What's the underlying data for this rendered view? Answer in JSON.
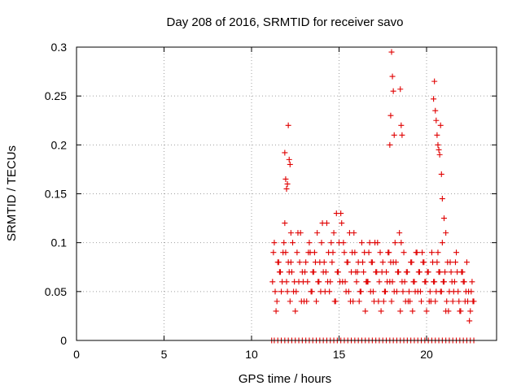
{
  "chart_data": {
    "type": "scatter",
    "title": "Day 208 of 2016, SRMTID for receiver savo",
    "xlabel": "GPS time / hours",
    "ylabel": "SRMTID / TECUs",
    "xlim": [
      0,
      24
    ],
    "ylim": [
      0,
      0.3
    ],
    "xticks": [
      0,
      5,
      10,
      15,
      20
    ],
    "xtick_labels": [
      "0",
      "5",
      "10",
      "15",
      "20"
    ],
    "yticks": [
      0,
      0.05,
      0.1,
      0.15,
      0.2,
      0.25,
      0.3
    ],
    "ytick_labels": [
      "0",
      "0.05",
      "0.1",
      "0.15",
      "0.2",
      "0.25",
      "0.3"
    ],
    "grid": true,
    "marker": "plus",
    "color": "#e00000",
    "series": [
      {
        "name": "SRMTID",
        "x": [
          11.2,
          11.3,
          11.4,
          11.5,
          11.6,
          11.7,
          11.8,
          11.9,
          12.0,
          12.1,
          12.2,
          12.3,
          12.4,
          12.5,
          12.6,
          12.7,
          12.8,
          12.9,
          13.0,
          13.1,
          13.2,
          13.3,
          13.4,
          13.5,
          13.6,
          13.7,
          13.8,
          13.9,
          14.0,
          14.1,
          14.2,
          14.3,
          14.4,
          14.5,
          14.6,
          14.7,
          14.8,
          14.9,
          15.0,
          15.1,
          15.2,
          15.3,
          15.4,
          15.5,
          15.6,
          15.7,
          15.8,
          15.9,
          16.0,
          16.1,
          16.2,
          16.3,
          16.4,
          16.5,
          16.6,
          16.7,
          16.8,
          16.9,
          17.0,
          17.1,
          17.2,
          17.3,
          17.4,
          17.5,
          17.6,
          17.7,
          17.8,
          17.9,
          18.0,
          18.1,
          18.2,
          18.3,
          18.4,
          18.5,
          18.6,
          18.7,
          18.8,
          18.9,
          19.0,
          19.1,
          19.2,
          19.3,
          19.4,
          19.5,
          19.6,
          19.7,
          19.8,
          19.9,
          20.0,
          20.1,
          20.2,
          20.3,
          20.4,
          20.5,
          20.6,
          20.7,
          20.8,
          20.9,
          21.0,
          21.1,
          21.2,
          21.3,
          21.4,
          21.5,
          21.6,
          21.7,
          21.8,
          21.9,
          22.0,
          22.1,
          22.2,
          22.3,
          22.4,
          22.5,
          22.6,
          22.7,
          11.25,
          11.45,
          11.65,
          11.85,
          12.05,
          12.25,
          12.45,
          12.65,
          12.85,
          13.05,
          13.25,
          13.45,
          13.65,
          13.85,
          14.05,
          14.25,
          14.45,
          14.65,
          14.85,
          15.05,
          15.25,
          15.45,
          15.65,
          15.85,
          16.05,
          16.25,
          16.45,
          16.65,
          16.85,
          17.05,
          17.25,
          17.45,
          17.65,
          17.85,
          18.05,
          18.25,
          18.45,
          18.65,
          18.85,
          19.05,
          19.25,
          19.45,
          19.65,
          19.85,
          20.05,
          20.25,
          20.45,
          20.65,
          20.85,
          21.05,
          21.25,
          21.45,
          21.65,
          21.85,
          22.05,
          22.25,
          22.45,
          22.65,
          11.35,
          11.55,
          11.75,
          11.95,
          12.15,
          12.35,
          12.55,
          12.75,
          12.95,
          13.15,
          13.35,
          13.55,
          13.75,
          13.95,
          14.15,
          14.35,
          14.55,
          14.75,
          14.95,
          15.15,
          15.35,
          15.55,
          15.75,
          15.95,
          16.15,
          16.35,
          16.55,
          16.75,
          16.95,
          17.15,
          17.35,
          17.55,
          17.75,
          17.95,
          18.15,
          18.35,
          18.55,
          18.75,
          18.95,
          19.15,
          19.35,
          19.55,
          19.75,
          19.95,
          20.15,
          20.35,
          20.55,
          20.75,
          20.95,
          21.15,
          21.35,
          21.55,
          21.75,
          21.95,
          22.15,
          22.35,
          22.55,
          11.9,
          11.95,
          12.0,
          12.05,
          12.1,
          12.15,
          12.2,
          12.25,
          17.9,
          17.95,
          18.0,
          18.05,
          18.1,
          18.15,
          18.5,
          18.55,
          18.6,
          20.4,
          20.45,
          20.5,
          20.55,
          20.6,
          20.65,
          20.7,
          20.75,
          20.8,
          20.85,
          20.9,
          21.0,
          21.1,
          11.15,
          11.3,
          11.5,
          11.7,
          11.9,
          12.1,
          12.3,
          12.5,
          12.7,
          12.9,
          13.1,
          13.3,
          13.5,
          13.7,
          13.9,
          14.1,
          14.3,
          14.5,
          14.7,
          14.9,
          15.1,
          15.3,
          15.5,
          15.7,
          15.9,
          16.1,
          16.3,
          16.5,
          16.7,
          16.9,
          17.1,
          17.3,
          17.5,
          17.7,
          17.9,
          18.1,
          18.3,
          18.5,
          18.7,
          18.9,
          19.1,
          19.3,
          19.5,
          19.7,
          19.9,
          20.1,
          20.3,
          20.5,
          20.7,
          20.9,
          21.1,
          21.3,
          21.5,
          21.7,
          21.9,
          22.1,
          22.3,
          22.5,
          22.7
        ],
        "y": [
          0.06,
          0.1,
          0.03,
          0.08,
          0.07,
          0.05,
          0.09,
          0.12,
          0.06,
          0.08,
          0.04,
          0.07,
          0.05,
          0.03,
          0.09,
          0.06,
          0.11,
          0.07,
          0.04,
          0.08,
          0.06,
          0.1,
          0.05,
          0.07,
          0.09,
          0.04,
          0.06,
          0.08,
          0.1,
          0.07,
          0.05,
          0.12,
          0.09,
          0.06,
          0.08,
          0.11,
          0.04,
          0.07,
          0.1,
          0.13,
          0.06,
          0.09,
          0.05,
          0.08,
          0.11,
          0.07,
          0.04,
          0.09,
          0.06,
          0.08,
          0.05,
          0.1,
          0.07,
          0.03,
          0.06,
          0.09,
          0.05,
          0.08,
          0.04,
          0.07,
          0.1,
          0.06,
          0.03,
          0.08,
          0.05,
          0.07,
          0.09,
          0.06,
          0.04,
          0.08,
          0.1,
          0.05,
          0.07,
          0.03,
          0.06,
          0.09,
          0.04,
          0.07,
          0.05,
          0.08,
          0.03,
          0.06,
          0.09,
          0.05,
          0.07,
          0.04,
          0.08,
          0.06,
          0.03,
          0.07,
          0.05,
          0.09,
          0.06,
          0.04,
          0.08,
          0.07,
          0.05,
          0.1,
          0.06,
          0.03,
          0.08,
          0.05,
          0.07,
          0.04,
          0.06,
          0.09,
          0.05,
          0.03,
          0.07,
          0.06,
          0.04,
          0.08,
          0.05,
          0.03,
          0.06,
          0.04,
          0.09,
          0.04,
          0.07,
          0.1,
          0.05,
          0.08,
          0.06,
          0.11,
          0.04,
          0.07,
          0.09,
          0.05,
          0.08,
          0.06,
          0.12,
          0.07,
          0.05,
          0.09,
          0.13,
          0.06,
          0.1,
          0.08,
          0.04,
          0.11,
          0.07,
          0.05,
          0.09,
          0.06,
          0.08,
          0.1,
          0.04,
          0.07,
          0.05,
          0.09,
          0.06,
          0.08,
          0.11,
          0.05,
          0.07,
          0.04,
          0.06,
          0.09,
          0.05,
          0.08,
          0.07,
          0.04,
          0.06,
          0.09,
          0.05,
          0.07,
          0.03,
          0.06,
          0.08,
          0.04,
          0.07,
          0.05,
          0.02,
          0.04,
          0.05,
          0.08,
          0.06,
          0.09,
          0.07,
          0.1,
          0.05,
          0.08,
          0.06,
          0.04,
          0.09,
          0.07,
          0.11,
          0.05,
          0.08,
          0.06,
          0.1,
          0.04,
          0.07,
          0.12,
          0.06,
          0.05,
          0.09,
          0.07,
          0.04,
          0.08,
          0.06,
          0.1,
          0.05,
          0.07,
          0.09,
          0.04,
          0.06,
          0.08,
          0.05,
          0.07,
          0.1,
          0.06,
          0.04,
          0.08,
          0.05,
          0.07,
          0.09,
          0.06,
          0.04,
          0.08,
          0.05,
          0.07,
          0.06,
          0.04,
          0.08,
          0.05,
          0.07,
          0.03,
          0.06,
          0.04,
          0.05,
          0.192,
          0.165,
          0.155,
          0.16,
          0.22,
          0.185,
          0.18,
          0.11,
          0.2,
          0.23,
          0.295,
          0.27,
          0.255,
          0.21,
          0.257,
          0.22,
          0.21,
          0.247,
          0.265,
          0.235,
          0.225,
          0.21,
          0.2,
          0.195,
          0.19,
          0.22,
          0.17,
          0.145,
          0.125,
          0.11,
          0,
          0,
          0,
          0,
          0,
          0,
          0,
          0,
          0,
          0,
          0,
          0,
          0,
          0,
          0,
          0,
          0,
          0,
          0,
          0,
          0,
          0,
          0,
          0,
          0,
          0,
          0,
          0,
          0,
          0,
          0,
          0,
          0,
          0,
          0,
          0,
          0,
          0,
          0,
          0,
          0,
          0,
          0,
          0,
          0,
          0,
          0,
          0,
          0,
          0,
          0,
          0,
          0,
          0,
          0,
          0,
          0,
          0,
          0
        ]
      }
    ]
  }
}
